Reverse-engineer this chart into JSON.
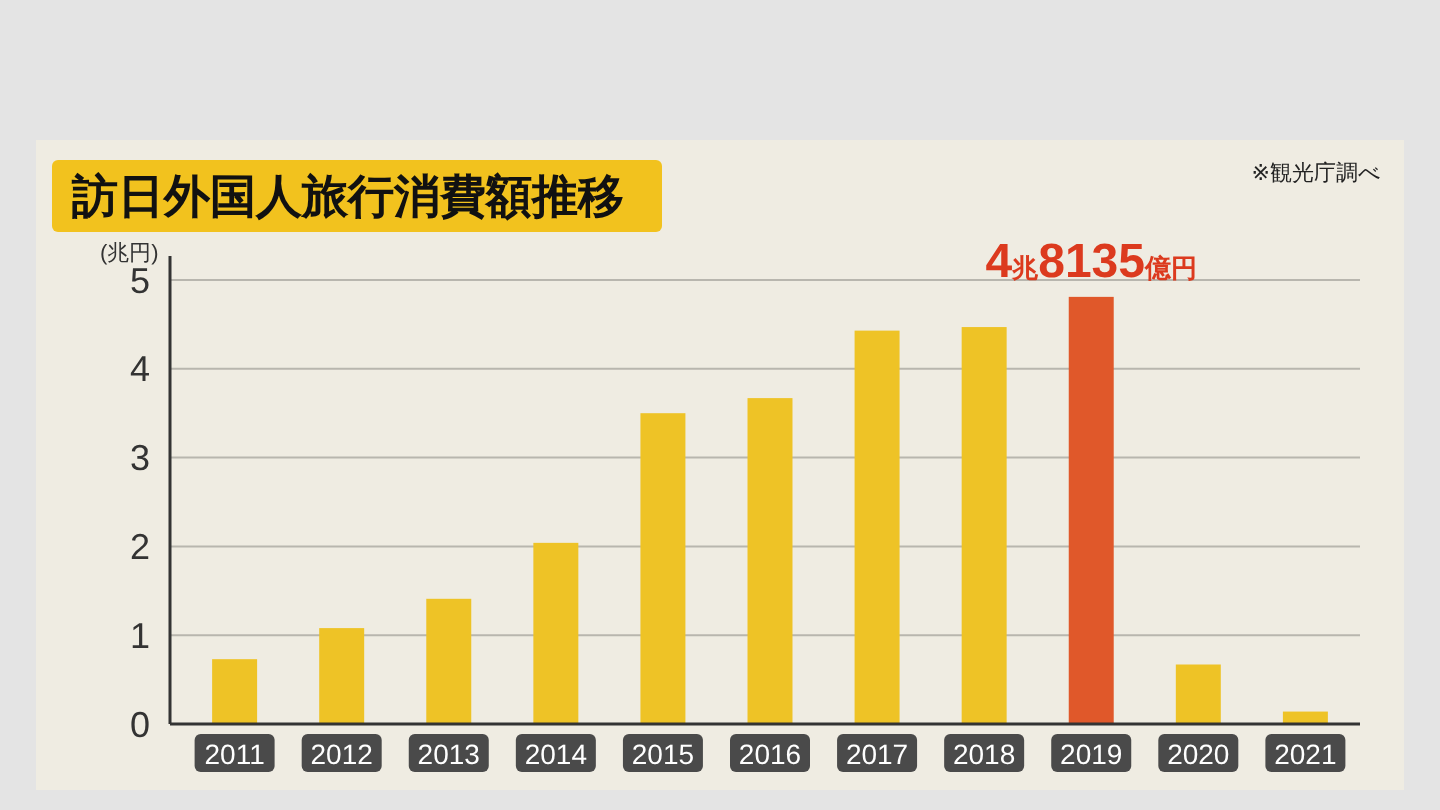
{
  "chart_data": {
    "type": "bar",
    "title": "訪日外国人旅行消費額推移",
    "ylabel": "(兆円)",
    "categories": [
      "2011",
      "2012",
      "2013",
      "2014",
      "2015",
      "2016",
      "2017",
      "2018",
      "2019",
      "2020",
      "2021"
    ],
    "values": [
      0.73,
      1.08,
      1.41,
      2.04,
      3.5,
      3.67,
      4.43,
      4.47,
      4.81,
      0.67,
      0.14
    ],
    "colors": [
      "#eec326",
      "#eec326",
      "#eec326",
      "#eec326",
      "#eec326",
      "#eec326",
      "#eec326",
      "#eec326",
      "#e0582a",
      "#eec326",
      "#eec326"
    ],
    "ylim": [
      0,
      5
    ],
    "yticks": [
      0,
      1,
      2,
      3,
      4,
      5
    ],
    "grid": "y",
    "annotations": [
      {
        "text": "4兆8135億円",
        "x": "2019",
        "y": 4.81
      },
      "※観光庁調べ"
    ]
  }
}
